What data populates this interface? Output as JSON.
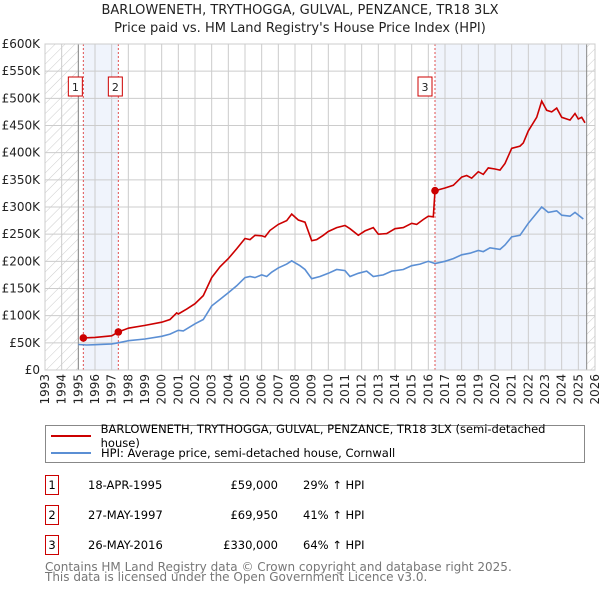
{
  "title_line1": "BARLOWENETH, TRYTHOGGA, GULVAL, PENZANCE, TR18 3LX",
  "title_line2": "Price paid vs. HM Land Registry's House Price Index (HPI)",
  "chart_data": {
    "type": "line",
    "xlim": [
      1993,
      2026
    ],
    "ylim": [
      0,
      600000
    ],
    "yticks": [
      0,
      50000,
      100000,
      150000,
      200000,
      250000,
      300000,
      350000,
      400000,
      450000,
      500000,
      550000,
      600000
    ],
    "ytick_labels": [
      "£0",
      "£50K",
      "£100K",
      "£150K",
      "£200K",
      "£250K",
      "£300K",
      "£350K",
      "£400K",
      "£450K",
      "£500K",
      "£550K",
      "£600K"
    ],
    "xticks": [
      1993,
      1994,
      1995,
      1996,
      1997,
      1998,
      1999,
      2000,
      2001,
      2002,
      2003,
      2004,
      2005,
      2006,
      2007,
      2008,
      2009,
      2010,
      2011,
      2012,
      2013,
      2014,
      2015,
      2016,
      2017,
      2018,
      2019,
      2020,
      2021,
      2022,
      2023,
      2024,
      2025,
      2026
    ],
    "grid": true,
    "hatched_ranges": [
      [
        1993,
        1995.0
      ],
      [
        2025.5,
        2026
      ]
    ],
    "shaded_ranges": [
      [
        1995.3,
        1997.4
      ],
      [
        2016.4,
        2025.5
      ]
    ],
    "series": [
      {
        "name": "BARLOWENETH, TRYTHOGGA, GULVAL, PENZANCE, TR18 3LX (semi-detached house)",
        "color": "#cc0000",
        "x": [
          1995.3,
          1996,
          1997.0,
          1997.4,
          1998,
          1999,
          2000,
          2000.5,
          2000.9,
          2001.0,
          2001.5,
          2002,
          2002.5,
          2003,
          2003.5,
          2004,
          2004.5,
          2005,
          2005.3,
          2005.6,
          2006,
          2006.2,
          2006.5,
          2007,
          2007.5,
          2007.8,
          2008.2,
          2008.6,
          2009.0,
          2009.3,
          2009.7,
          2010,
          2010.5,
          2011,
          2011.3,
          2011.8,
          2012.2,
          2012.7,
          2013.0,
          2013.5,
          2014,
          2014.5,
          2015,
          2015.3,
          2015.7,
          2016,
          2016.3,
          2016.4,
          2017,
          2017.5,
          2018,
          2018.3,
          2018.6,
          2019,
          2019.3,
          2019.6,
          2020,
          2020.3,
          2020.6,
          2021,
          2021.5,
          2021.7,
          2022,
          2022.5,
          2022.8,
          2023.1,
          2023.4,
          2023.7,
          2024,
          2024.5,
          2024.8,
          2025.0,
          2025.2,
          2025.4
        ],
        "y": [
          59000,
          60000,
          63000,
          70000,
          77000,
          82000,
          88000,
          93000,
          105000,
          103000,
          112000,
          122000,
          137000,
          170000,
          190000,
          205000,
          223000,
          242000,
          240000,
          248000,
          247000,
          245000,
          257000,
          268000,
          275000,
          287000,
          276000,
          272000,
          238000,
          240000,
          248000,
          255000,
          262000,
          266000,
          260000,
          248000,
          256000,
          262000,
          250000,
          251000,
          260000,
          262000,
          270000,
          268000,
          277000,
          283000,
          282000,
          330000,
          335000,
          340000,
          355000,
          358000,
          353000,
          365000,
          360000,
          372000,
          370000,
          368000,
          380000,
          408000,
          412000,
          418000,
          440000,
          465000,
          495000,
          478000,
          475000,
          482000,
          465000,
          460000,
          472000,
          462000,
          465000,
          455000
        ]
      },
      {
        "name": "HPI: Average price, semi-detached house, Cornwall",
        "color": "#5b8fd4",
        "x": [
          1995.0,
          1995.5,
          1996,
          1997,
          1997.4,
          1998,
          1999,
          2000,
          2000.5,
          2001,
          2001.3,
          2002,
          2002.5,
          2003,
          2003.5,
          2004,
          2004.5,
          2005,
          2005.3,
          2005.6,
          2006,
          2006.3,
          2006.6,
          2007,
          2007.5,
          2007.8,
          2008.3,
          2008.6,
          2009.0,
          2009.5,
          2010,
          2010.5,
          2011,
          2011.3,
          2011.8,
          2012.3,
          2012.7,
          2013.3,
          2013.8,
          2014.5,
          2015,
          2015.5,
          2016,
          2016.4,
          2017,
          2017.5,
          2018,
          2018.5,
          2019,
          2019.3,
          2019.7,
          2020.3,
          2020.6,
          2021,
          2021.5,
          2022,
          2022.8,
          2023.2,
          2023.7,
          2024,
          2024.5,
          2024.8,
          2025.3
        ],
        "y": [
          47000,
          46000,
          46500,
          48000,
          50000,
          54000,
          57000,
          62000,
          66000,
          73000,
          72000,
          85000,
          93000,
          118000,
          130000,
          142000,
          155000,
          170000,
          172000,
          170000,
          175000,
          172000,
          180000,
          188000,
          195000,
          201000,
          192000,
          185000,
          168000,
          172000,
          178000,
          185000,
          183000,
          172000,
          178000,
          182000,
          172000,
          175000,
          182000,
          185000,
          192000,
          195000,
          200000,
          196000,
          200000,
          205000,
          212000,
          215000,
          220000,
          218000,
          225000,
          222000,
          230000,
          245000,
          248000,
          270000,
          300000,
          290000,
          293000,
          285000,
          283000,
          290000,
          278000
        ]
      }
    ],
    "sales": [
      {
        "id": "1",
        "x": 1995.3,
        "y": 59000
      },
      {
        "id": "2",
        "x": 1997.4,
        "y": 69950
      },
      {
        "id": "3",
        "x": 2016.4,
        "y": 330000
      }
    ]
  },
  "legend": {
    "property": "BARLOWENETH, TRYTHOGGA, GULVAL, PENZANCE, TR18 3LX (semi-detached house)",
    "hpi": "HPI: Average price, semi-detached house, Cornwall"
  },
  "transactions": [
    {
      "num": "1",
      "date": "18-APR-1995",
      "price": "£59,000",
      "hpi": "29% ↑ HPI"
    },
    {
      "num": "2",
      "date": "27-MAY-1997",
      "price": "£69,950",
      "hpi": "41% ↑ HPI"
    },
    {
      "num": "3",
      "date": "26-MAY-2016",
      "price": "£330,000",
      "hpi": "64% ↑ HPI"
    }
  ],
  "footer": {
    "line1": "Contains HM Land Registry data © Crown copyright and database right 2025.",
    "line2": "This data is licensed under the Open Government Licence v3.0."
  }
}
